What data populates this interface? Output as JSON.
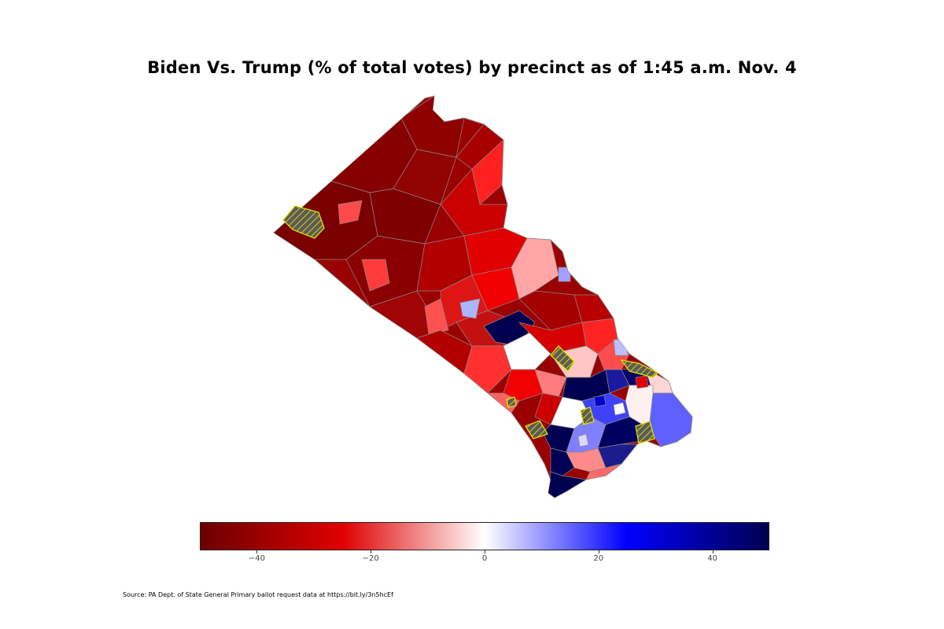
{
  "title": "Biden Vs. Trump (% of total votes) by precinct as of 1:45 a.m. Nov. 4",
  "colorbar": {
    "min": -50,
    "max": 50,
    "ticks": [
      {
        "value": -40,
        "label": "−40"
      },
      {
        "value": -20,
        "label": "−20"
      },
      {
        "value": 0,
        "label": "0"
      },
      {
        "value": 20,
        "label": "20"
      },
      {
        "value": 40,
        "label": "40"
      }
    ],
    "colors": [
      "#6b0000",
      "#e00000",
      "#ffffff",
      "#0000ff",
      "#000050"
    ]
  },
  "legend": {
    "no_data_color": "#c8c400",
    "no_data_hatch": "#5b5b5b"
  },
  "source": "Source: PA Dept. of State General Primary ballot request data at https://bit.ly/3n5hcEf"
}
